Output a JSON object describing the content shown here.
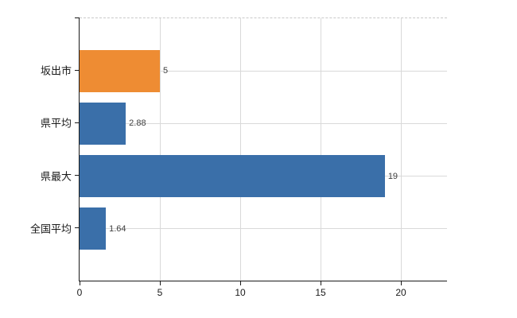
{
  "chart_data": {
    "type": "bar",
    "orientation": "horizontal",
    "title": "",
    "categories": [
      "坂出市",
      "県平均",
      "県最大",
      "全国平均"
    ],
    "values": [
      5,
      2.88,
      19,
      1.64
    ],
    "value_labels": [
      "5",
      "2.88",
      "19",
      "1.64"
    ],
    "bar_colors": [
      "#ee8c33",
      "#3a6fa9",
      "#3a6fa9",
      "#3a6fa9"
    ],
    "xlim": [
      0,
      22.87
    ],
    "xticks": [
      0,
      5,
      10,
      15,
      20
    ],
    "xtick_labels": [
      "0",
      "5",
      "10",
      "15",
      "20"
    ],
    "grid": true,
    "legend": "none",
    "colors": {
      "highlight_bar": "#ee8c33",
      "default_bar": "#3a6fa9",
      "gridline": "#d9d9d9",
      "top_border_dashed": "#c9c9c9",
      "axis": "#1a1a1a",
      "value_label": "#404040",
      "background": "#ffffff"
    }
  }
}
